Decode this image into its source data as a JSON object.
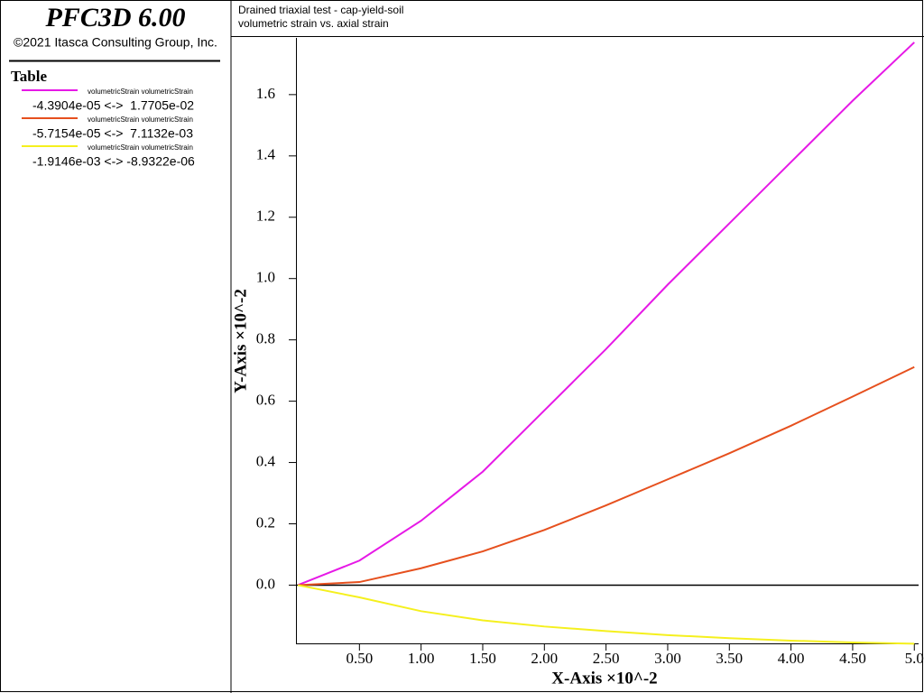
{
  "header": {
    "product": "PFC3D 6.00",
    "copyright": "©2021 Itasca Consulting Group, Inc.",
    "table_title": "Table"
  },
  "chart_data": {
    "type": "line",
    "title": "Drained triaxial test - cap-yield-soil",
    "subtitle": "volumetric strain vs. axial strain",
    "x_label": "X-Axis ×10^-2",
    "y_label": "Y-Axis ×10^-2",
    "x": [
      0,
      0.5,
      1.0,
      1.5,
      2.0,
      2.5,
      3.0,
      3.5,
      4.0,
      4.5,
      5.0
    ],
    "series": [
      {
        "name": "volumetricStrain volumetricStrain",
        "range": "-4.3904e-05 <->  1.7705e-02",
        "color": "#e619e6",
        "values": [
          0,
          0.08,
          0.21,
          0.37,
          0.57,
          0.77,
          0.98,
          1.18,
          1.38,
          1.58,
          1.7705
        ]
      },
      {
        "name": "volumetricStrain volumetricStrain",
        "range": "-5.7154e-05 <->  7.1132e-03",
        "color": "#e6501e",
        "values": [
          0,
          0.01,
          0.055,
          0.11,
          0.18,
          0.26,
          0.345,
          0.43,
          0.52,
          0.615,
          0.71132
        ]
      },
      {
        "name": "volumetricStrain volumetricStrain",
        "range": "-1.9146e-03 <-> -8.9322e-06",
        "color": "#f5f01e",
        "values": [
          0,
          -0.04,
          -0.085,
          -0.115,
          -0.135,
          -0.15,
          -0.163,
          -0.173,
          -0.181,
          -0.187,
          -0.191
        ]
      }
    ],
    "xlim": [
      0,
      5.02
    ],
    "ylim": [
      -0.19,
      1.785
    ],
    "xticks": [
      {
        "value": 0.5,
        "label": "0.50"
      },
      {
        "value": 1,
        "label": "1.00"
      },
      {
        "value": 1.5,
        "label": "1.50"
      },
      {
        "value": 2,
        "label": "2.00"
      },
      {
        "value": 2.5,
        "label": "2.50"
      },
      {
        "value": 3,
        "label": "3.00"
      },
      {
        "value": 3.5,
        "label": "3.50"
      },
      {
        "value": 4,
        "label": "4.00"
      },
      {
        "value": 4.5,
        "label": "4.50"
      },
      {
        "value": 5,
        "label": "5.0"
      }
    ],
    "yticks": [
      {
        "value": 0,
        "label": "0.0"
      },
      0.2,
      0.4,
      0.6,
      0.8,
      {
        "value": 1,
        "label": "1.0"
      },
      1.2,
      1.4,
      1.6
    ],
    "zero_line": true
  }
}
